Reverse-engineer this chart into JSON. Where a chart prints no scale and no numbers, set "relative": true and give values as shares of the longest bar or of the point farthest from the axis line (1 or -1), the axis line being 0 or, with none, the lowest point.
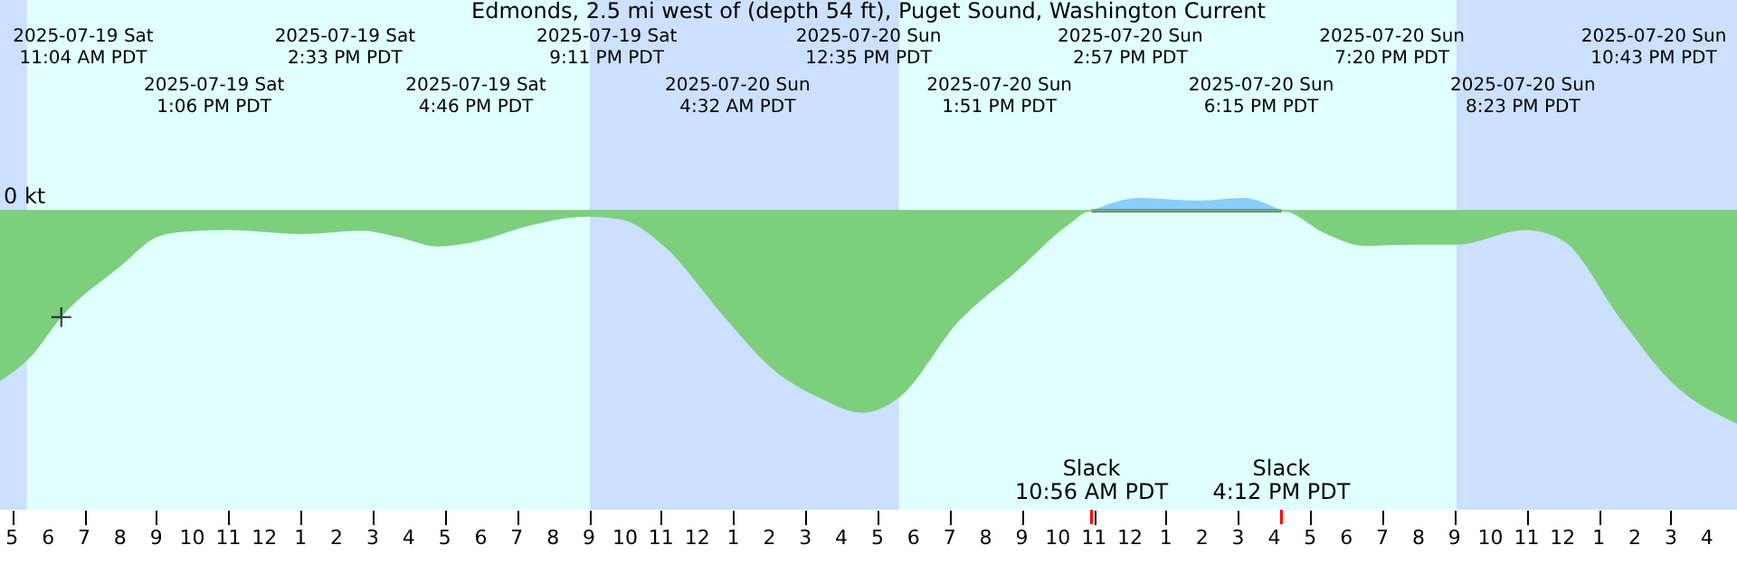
{
  "chart_data": {
    "type": "area",
    "title": "Edmonds, 2.5 mi west of (depth 54 ft), Puget Sound, Washington Current",
    "relative": true,
    "xlim": [
      "2025-07-19T04:40",
      "2025-07-21T04:50"
    ],
    "xticks": [
      {
        "value": "2025-07-19T05:00",
        "label": "5"
      },
      {
        "value": "2025-07-19T06:00",
        "label": "6"
      },
      {
        "value": "2025-07-19T07:00",
        "label": "7"
      },
      {
        "value": "2025-07-19T08:00",
        "label": "8"
      },
      {
        "value": "2025-07-19T09:00",
        "label": "9"
      },
      {
        "value": "2025-07-19T10:00",
        "label": "10"
      },
      {
        "value": "2025-07-19T11:00",
        "label": "11"
      },
      {
        "value": "2025-07-19T12:00",
        "label": "12"
      },
      {
        "value": "2025-07-19T13:00",
        "label": "1"
      },
      {
        "value": "2025-07-19T14:00",
        "label": "2"
      },
      {
        "value": "2025-07-19T15:00",
        "label": "3"
      },
      {
        "value": "2025-07-19T16:00",
        "label": "4"
      },
      {
        "value": "2025-07-19T17:00",
        "label": "5"
      },
      {
        "value": "2025-07-19T18:00",
        "label": "6"
      },
      {
        "value": "2025-07-19T19:00",
        "label": "7"
      },
      {
        "value": "2025-07-19T20:00",
        "label": "8"
      },
      {
        "value": "2025-07-19T21:00",
        "label": "9"
      },
      {
        "value": "2025-07-19T22:00",
        "label": "10"
      },
      {
        "value": "2025-07-19T23:00",
        "label": "11"
      },
      {
        "value": "2025-07-20T00:00",
        "label": "12"
      },
      {
        "value": "2025-07-20T01:00",
        "label": "1"
      },
      {
        "value": "2025-07-20T02:00",
        "label": "2"
      },
      {
        "value": "2025-07-20T03:00",
        "label": "3"
      },
      {
        "value": "2025-07-20T04:00",
        "label": "4"
      },
      {
        "value": "2025-07-20T05:00",
        "label": "5"
      },
      {
        "value": "2025-07-20T06:00",
        "label": "6"
      },
      {
        "value": "2025-07-20T07:00",
        "label": "7"
      },
      {
        "value": "2025-07-20T08:00",
        "label": "8"
      },
      {
        "value": "2025-07-20T09:00",
        "label": "9"
      },
      {
        "value": "2025-07-20T10:00",
        "label": "10"
      },
      {
        "value": "2025-07-20T11:00",
        "label": "11"
      },
      {
        "value": "2025-07-20T12:00",
        "label": "12"
      },
      {
        "value": "2025-07-20T13:00",
        "label": "1"
      },
      {
        "value": "2025-07-20T14:00",
        "label": "2"
      },
      {
        "value": "2025-07-20T15:00",
        "label": "3"
      },
      {
        "value": "2025-07-20T16:00",
        "label": "4"
      },
      {
        "value": "2025-07-20T17:00",
        "label": "5"
      },
      {
        "value": "2025-07-20T18:00",
        "label": "6"
      },
      {
        "value": "2025-07-20T19:00",
        "label": "7"
      },
      {
        "value": "2025-07-20T20:00",
        "label": "8"
      },
      {
        "value": "2025-07-20T21:00",
        "label": "9"
      },
      {
        "value": "2025-07-20T22:00",
        "label": "10"
      },
      {
        "value": "2025-07-20T23:00",
        "label": "11"
      },
      {
        "value": "2025-07-21T00:00",
        "label": "12"
      },
      {
        "value": "2025-07-21T01:00",
        "label": "1"
      },
      {
        "value": "2025-07-21T02:00",
        "label": "2"
      },
      {
        "value": "2025-07-21T03:00",
        "label": "3"
      },
      {
        "value": "2025-07-21T04:00",
        "label": "4"
      }
    ],
    "series": [
      {
        "color": "#7ccf7c",
        "x": [
          "2025-07-19T04:40",
          "2025-07-19T05:30",
          "2025-07-19T06:22",
          "2025-07-19T08:01",
          "2025-07-19T09:01",
          "2025-07-19T09:41",
          "2025-07-19T11:01",
          "2025-07-19T13:01",
          "2025-07-19T14:42",
          "2025-07-19T15:42",
          "2025-07-19T16:47",
          "2025-07-19T18:02",
          "2025-07-19T19:12",
          "2025-07-19T20:58",
          "2025-07-19T21:53",
          "2025-07-19T23:04",
          "2025-07-20T00:44",
          "2025-07-20T02:04",
          "2025-07-20T03:24",
          "2025-07-20T04:35",
          "2025-07-20T05:35",
          "2025-07-20T07:15",
          "2025-07-20T08:55",
          "2025-07-20T10:16",
          "2025-07-20T10:56",
          "2025-07-20T16:12",
          "2025-07-20T17:27",
          "2025-07-20T18:28",
          "2025-07-20T19:48",
          "2025-07-20T21:03",
          "2025-07-20T22:58",
          "2025-07-20T23:59",
          "2025-07-21T01:39",
          "2025-07-21T02:59",
          "2025-07-21T04:50"
        ],
        "values": [
          -0.8,
          -0.69,
          -0.5,
          -0.26,
          -0.124,
          -0.1,
          -0.091,
          -0.11,
          -0.094,
          -0.124,
          -0.168,
          -0.138,
          -0.077,
          -0.028,
          -0.041,
          -0.165,
          -0.496,
          -0.74,
          -0.88,
          -0.95,
          -0.88,
          -0.52,
          -0.275,
          -0.069,
          0,
          0,
          -0.11,
          -0.165,
          -0.16,
          -0.16,
          -0.091,
          -0.138,
          -0.52,
          -0.8,
          -1.0
        ]
      },
      {
        "color": "#87cefa",
        "x": [
          "2025-07-20T10:56",
          "2025-07-20T12:16",
          "2025-07-20T13:56",
          "2025-07-20T15:07",
          "2025-07-20T16:12"
        ],
        "values": [
          0,
          0.06,
          0.047,
          0.06,
          0
        ]
      },
      {
        "type": "scatter",
        "color": "#000000",
        "marker": "cross",
        "x": [
          "2025-07-19T06:22"
        ],
        "values": [
          -0.5
        ]
      }
    ],
    "ref_lines": [
      {
        "axis": "y",
        "value": 0,
        "label": "0 kt",
        "color": "#7ccf7c"
      }
    ],
    "bands": [
      {
        "axis": "x",
        "from": "2025-07-19T04:40",
        "to": "2025-07-19T05:25",
        "color": "#cce0ff"
      },
      {
        "axis": "x",
        "from": "2025-07-19T05:25",
        "to": "2025-07-19T21:01",
        "color": "#e0ffff"
      },
      {
        "axis": "x",
        "from": "2025-07-19T21:01",
        "to": "2025-07-20T05:36",
        "color": "#cce0ff"
      },
      {
        "axis": "x",
        "from": "2025-07-20T05:36",
        "to": "2025-07-20T21:03",
        "color": "#e0ffff"
      },
      {
        "axis": "x",
        "from": "2025-07-20T21:03",
        "to": "2025-07-21T04:50",
        "color": "#cce0ff"
      }
    ],
    "annotations": [
      "2025-07-19 Sat\n11:04 AM PDT",
      "2025-07-19 Sat\n1:06 PM PDT",
      "2025-07-19 Sat\n2:33 PM PDT",
      "2025-07-19 Sat\n4:46 PM PDT",
      "2025-07-19 Sat\n9:11 PM PDT",
      "2025-07-20 Sun\n4:32 AM PDT",
      "2025-07-20 Sun\n12:35 PM PDT",
      "2025-07-20 Sun\n1:51 PM PDT",
      "2025-07-20 Sun\n2:57 PM PDT",
      "2025-07-20 Sun\n6:15 PM PDT",
      "2025-07-20 Sun\n7:20 PM PDT",
      "2025-07-20 Sun\n8:23 PM PDT",
      "2025-07-20 Sun\n10:43 PM PDT",
      {
        "text": "Slack\n10:56 AM PDT",
        "x": "2025-07-20T10:56"
      },
      {
        "text": "Slack\n4:12 PM PDT",
        "x": "2025-07-20T16:12"
      }
    ]
  }
}
